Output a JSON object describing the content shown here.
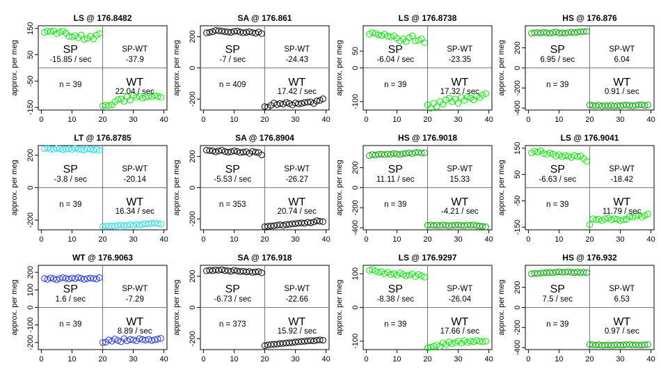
{
  "chart_data": [
    {
      "type": "scatter",
      "title": "LS @ 176.8482",
      "ylabel": "approx. per meg",
      "color": "#00ee00",
      "ylim": [
        -160,
        160
      ],
      "yticks": [
        150,
        50,
        -50,
        -150
      ],
      "xlim": [
        -1,
        41
      ],
      "xticks": [
        0,
        10,
        20,
        30,
        40
      ],
      "x": [
        1,
        2,
        3,
        4,
        5,
        6,
        7,
        8,
        9,
        10,
        11,
        12,
        13,
        14,
        15,
        16,
        17,
        18,
        19,
        20,
        21,
        22,
        23,
        24,
        25,
        26,
        27,
        28,
        29,
        30,
        31,
        32,
        33,
        34,
        35,
        36,
        37,
        38,
        39
      ],
      "y": [
        135,
        140,
        138,
        141,
        130,
        136,
        140,
        132,
        120,
        118,
        122,
        115,
        125,
        108,
        112,
        120,
        110,
        125,
        130,
        -145,
        -142,
        -143,
        -140,
        -128,
        -120,
        -118,
        -127,
        -110,
        -122,
        -105,
        -112,
        -108,
        -115,
        -112,
        -108,
        -110,
        -105,
        -108,
        -112
      ],
      "labels": {
        "sp": "SP",
        "sp_rate": "-15.85 / sec",
        "spwt": "SP-WT",
        "spwt_val": "-37.9",
        "n": "n = 39",
        "wt": "WT",
        "wt_rate": "22.04 / sec"
      }
    },
    {
      "type": "scatter",
      "title": "SA @ 176.861",
      "ylabel": "approx. per meg",
      "color": "#000000",
      "ylim": [
        -270,
        270
      ],
      "yticks": [
        200,
        0,
        -200
      ],
      "xlim": [
        -1,
        41
      ],
      "xticks": [
        0,
        10,
        20,
        30,
        40
      ],
      "x": [
        1,
        2,
        3,
        4,
        5,
        6,
        7,
        8,
        9,
        10,
        11,
        12,
        13,
        14,
        15,
        16,
        17,
        18,
        19,
        20,
        21,
        22,
        23,
        24,
        25,
        26,
        27,
        28,
        29,
        30,
        31,
        32,
        33,
        34,
        35,
        36,
        37,
        38,
        39
      ],
      "y": [
        225,
        228,
        232,
        240,
        238,
        236,
        232,
        230,
        228,
        234,
        236,
        230,
        225,
        228,
        232,
        226,
        222,
        230,
        220,
        -248,
        -252,
        -240,
        -225,
        -235,
        -228,
        -232,
        -222,
        -228,
        -238,
        -225,
        -230,
        -228,
        -222,
        -220,
        -218,
        -228,
        -212,
        -208,
        -198
      ],
      "labels": {
        "sp": "SP",
        "sp_rate": "-7 / sec",
        "spwt": "SP-WT",
        "spwt_val": "-24.43",
        "n": "n = 409",
        "wt": "WT",
        "wt_rate": "17.42 / sec"
      }
    },
    {
      "type": "scatter",
      "title": "LS @ 176.8738",
      "ylabel": "approx. per meg",
      "color": "#00ee00",
      "ylim": [
        -125,
        125
      ],
      "yticks": [
        50,
        0,
        -100
      ],
      "xlim": [
        -1,
        41
      ],
      "xticks": [
        0,
        10,
        20,
        30,
        40
      ],
      "x": [
        1,
        2,
        3,
        4,
        5,
        6,
        7,
        8,
        9,
        10,
        11,
        12,
        13,
        14,
        15,
        16,
        17,
        18,
        19,
        20,
        21,
        22,
        23,
        24,
        25,
        26,
        27,
        28,
        29,
        30,
        31,
        32,
        33,
        34,
        35,
        36,
        37,
        38,
        39
      ],
      "y": [
        100,
        105,
        102,
        98,
        96,
        100,
        94,
        92,
        95,
        88,
        80,
        86,
        78,
        90,
        95,
        80,
        82,
        86,
        75,
        -110,
        -120,
        -105,
        -115,
        -100,
        -108,
        -95,
        -90,
        -100,
        -92,
        -105,
        -88,
        -96,
        -86,
        -90,
        -95,
        -84,
        -88,
        -80,
        -76
      ],
      "labels": {
        "sp": "SP",
        "sp_rate": "-6.04 / sec",
        "spwt": "SP-WT",
        "spwt_val": "-23.35",
        "n": "n = 39",
        "wt": "WT",
        "wt_rate": "17.32 / sec"
      }
    },
    {
      "type": "scatter",
      "title": "HS @ 176.876",
      "ylabel": "approx. per meg",
      "color": "#00aa00",
      "ylim": [
        -420,
        420
      ],
      "yticks": [
        200,
        0,
        -200,
        -400
      ],
      "xlim": [
        -1,
        41
      ],
      "xticks": [
        0,
        10,
        20,
        30,
        40
      ],
      "x": [
        1,
        2,
        3,
        4,
        5,
        6,
        7,
        8,
        9,
        10,
        11,
        12,
        13,
        14,
        15,
        16,
        17,
        18,
        19,
        20,
        21,
        22,
        23,
        24,
        25,
        26,
        27,
        28,
        29,
        30,
        31,
        32,
        33,
        34,
        35,
        36,
        37,
        38,
        39
      ],
      "y": [
        345,
        350,
        352,
        348,
        355,
        350,
        345,
        352,
        358,
        348,
        350,
        346,
        352,
        355,
        350,
        356,
        360,
        362,
        364,
        -370,
        -375,
        -378,
        -372,
        -380,
        -376,
        -378,
        -374,
        -380,
        -376,
        -378,
        -372,
        -370,
        -374,
        -378,
        -372,
        -370,
        -368,
        -374,
        -370
      ],
      "labels": {
        "sp": "SP",
        "sp_rate": "6.95 / sec",
        "spwt": "SP-WT",
        "spwt_val": "6.04",
        "n": "n = 39",
        "wt": "WT",
        "wt_rate": "0.91 / sec"
      }
    },
    {
      "type": "scatter",
      "title": "LT @ 176.8785",
      "ylabel": "approx. per meg",
      "color": "#22ddee",
      "ylim": [
        -260,
        260
      ],
      "yticks": [
        200,
        0,
        -200
      ],
      "xlim": [
        -1,
        41
      ],
      "xticks": [
        0,
        10,
        20,
        30,
        40
      ],
      "x": [
        1,
        2,
        3,
        4,
        5,
        6,
        7,
        8,
        9,
        10,
        11,
        12,
        13,
        14,
        15,
        16,
        17,
        18,
        19,
        20,
        21,
        22,
        23,
        24,
        25,
        26,
        27,
        28,
        29,
        30,
        31,
        32,
        33,
        34,
        35,
        36,
        37,
        38,
        39
      ],
      "y": [
        240,
        245,
        238,
        236,
        242,
        240,
        234,
        238,
        240,
        236,
        244,
        238,
        235,
        232,
        240,
        238,
        232,
        236,
        230,
        -240,
        -235,
        -238,
        -236,
        -238,
        -232,
        -230,
        -234,
        -232,
        -228,
        -234,
        -226,
        -230,
        -226,
        -222,
        -224,
        -220,
        -218,
        -222,
        -224
      ],
      "labels": {
        "sp": "SP",
        "sp_rate": "-3.8 / sec",
        "spwt": "SP-WT",
        "spwt_val": "-20.14",
        "n": "n = 39",
        "wt": "WT",
        "wt_rate": "16.34 / sec"
      }
    },
    {
      "type": "scatter",
      "title": "SA @ 176.8904",
      "ylabel": "approx. per meg",
      "color": "#000000",
      "ylim": [
        -270,
        270
      ],
      "yticks": [
        200,
        0,
        -200
      ],
      "xlim": [
        -1,
        41
      ],
      "xticks": [
        0,
        10,
        20,
        30,
        40
      ],
      "x": [
        1,
        2,
        3,
        4,
        5,
        6,
        7,
        8,
        9,
        10,
        11,
        12,
        13,
        14,
        15,
        16,
        17,
        18,
        19,
        20,
        21,
        22,
        23,
        24,
        25,
        26,
        27,
        28,
        29,
        30,
        31,
        32,
        33,
        34,
        35,
        36,
        37,
        38,
        39
      ],
      "y": [
        240,
        238,
        236,
        230,
        235,
        240,
        232,
        228,
        230,
        236,
        232,
        225,
        228,
        230,
        220,
        232,
        228,
        225,
        210,
        -250,
        -248,
        -245,
        -244,
        -240,
        -238,
        -242,
        -236,
        -235,
        -232,
        -230,
        -228,
        -225,
        -228,
        -222,
        -225,
        -220,
        -212,
        -215,
        -218
      ],
      "labels": {
        "sp": "SP",
        "sp_rate": "-5.53 / sec",
        "spwt": "SP-WT",
        "spwt_val": "-26.27",
        "n": "n = 353",
        "wt": "WT",
        "wt_rate": "20.74 / sec"
      }
    },
    {
      "type": "scatter",
      "title": "HS @ 176.9018",
      "ylabel": "approx. per meg",
      "color": "#00aa00",
      "ylim": [
        -420,
        420
      ],
      "yticks": [
        200,
        0,
        -200,
        -400
      ],
      "xlim": [
        -1,
        41
      ],
      "xticks": [
        0,
        10,
        20,
        30,
        40
      ],
      "x": [
        1,
        2,
        3,
        4,
        5,
        6,
        7,
        8,
        9,
        10,
        11,
        12,
        13,
        14,
        15,
        16,
        17,
        18,
        19,
        20,
        21,
        22,
        23,
        24,
        25,
        26,
        27,
        28,
        29,
        30,
        31,
        32,
        33,
        34,
        35,
        36,
        37,
        38,
        39
      ],
      "y": [
        320,
        330,
        325,
        332,
        334,
        330,
        336,
        332,
        340,
        336,
        330,
        338,
        342,
        346,
        340,
        350,
        352,
        345,
        348,
        -375,
        -372,
        -376,
        -374,
        -378,
        -372,
        -375,
        -380,
        -376,
        -374,
        -372,
        -376,
        -378,
        -372,
        -375,
        -372,
        -378,
        -382,
        -386,
        -390
      ],
      "labels": {
        "sp": "SP",
        "sp_rate": "11.11 / sec",
        "spwt": "SP-WT",
        "spwt_val": "15.33",
        "n": "n = 39",
        "wt": "WT",
        "wt_rate": "-4.21 / sec"
      }
    },
    {
      "type": "scatter",
      "title": "LS @ 176.9041",
      "ylabel": "approx. per meg",
      "color": "#00ee00",
      "ylim": [
        -160,
        160
      ],
      "yticks": [
        150,
        50,
        -50,
        -150
      ],
      "xlim": [
        -1,
        41
      ],
      "xticks": [
        0,
        10,
        20,
        30,
        40
      ],
      "x": [
        1,
        2,
        3,
        4,
        5,
        6,
        7,
        8,
        9,
        10,
        11,
        12,
        13,
        14,
        15,
        16,
        17,
        18,
        19,
        20,
        21,
        22,
        23,
        24,
        25,
        26,
        27,
        28,
        29,
        30,
        31,
        32,
        33,
        34,
        35,
        36,
        37,
        38,
        39
      ],
      "y": [
        132,
        138,
        135,
        140,
        130,
        126,
        132,
        128,
        120,
        125,
        118,
        122,
        120,
        115,
        122,
        118,
        120,
        110,
        100,
        -140,
        -118,
        -122,
        -120,
        -125,
        -118,
        -115,
        -122,
        -118,
        -120,
        -125,
        -122,
        -120,
        -110,
        -112,
        -108,
        -104,
        -112,
        -106,
        -100
      ],
      "labels": {
        "sp": "SP",
        "sp_rate": "-6.63 / sec",
        "spwt": "SP-WT",
        "spwt_val": "-18.42",
        "n": "n = 39",
        "wt": "WT",
        "wt_rate": "11.79 / sec"
      }
    },
    {
      "type": "scatter",
      "title": "WT @ 176.9063",
      "ylabel": "approx. per meg",
      "color": "#2233dd",
      "ylim": [
        -240,
        240
      ],
      "yticks": [
        200,
        100,
        0,
        -100,
        -200
      ],
      "xlim": [
        -1,
        41
      ],
      "xticks": [
        0,
        10,
        20,
        30,
        40
      ],
      "x": [
        1,
        2,
        3,
        4,
        5,
        6,
        7,
        8,
        9,
        10,
        11,
        12,
        13,
        14,
        15,
        16,
        17,
        18,
        19,
        20,
        21,
        22,
        23,
        24,
        25,
        26,
        27,
        28,
        29,
        30,
        31,
        32,
        33,
        34,
        35,
        36,
        37,
        38,
        39
      ],
      "y": [
        165,
        160,
        168,
        164,
        158,
        165,
        170,
        166,
        162,
        168,
        164,
        170,
        166,
        160,
        164,
        168,
        165,
        162,
        170,
        -200,
        -198,
        -185,
        -192,
        -180,
        -188,
        -195,
        -178,
        -190,
        -182,
        -185,
        -190,
        -178,
        -183,
        -186,
        -182,
        -188,
        -184,
        -180,
        -176
      ],
      "labels": {
        "sp": "SP",
        "sp_rate": "1.6 / sec",
        "spwt": "SP-WT",
        "spwt_val": "-7.29",
        "n": "n = 39",
        "wt": "WT",
        "wt_rate": "8.89 / sec"
      }
    },
    {
      "type": "scatter",
      "title": "SA @ 176.918",
      "ylabel": "approx. per meg",
      "color": "#000000",
      "ylim": [
        -270,
        270
      ],
      "yticks": [
        200,
        0,
        -200
      ],
      "xlim": [
        -1,
        41
      ],
      "xticks": [
        0,
        10,
        20,
        30,
        40
      ],
      "x": [
        1,
        2,
        3,
        4,
        5,
        6,
        7,
        8,
        9,
        10,
        11,
        12,
        13,
        14,
        15,
        16,
        17,
        18,
        19,
        20,
        21,
        22,
        23,
        24,
        25,
        26,
        27,
        28,
        29,
        30,
        31,
        32,
        33,
        34,
        35,
        36,
        37,
        38,
        39
      ],
      "y": [
        235,
        238,
        236,
        240,
        238,
        242,
        236,
        235,
        232,
        238,
        234,
        230,
        232,
        228,
        230,
        225,
        228,
        230,
        222,
        -245,
        -240,
        -238,
        -236,
        -235,
        -232,
        -230,
        -228,
        -226,
        -225,
        -222,
        -220,
        -218,
        -216,
        -215,
        -212,
        -214,
        -210,
        -208,
        -210
      ],
      "labels": {
        "sp": "SP",
        "sp_rate": "-6.73 / sec",
        "spwt": "SP-WT",
        "spwt_val": "-22.66",
        "n": "n = 373",
        "wt": "WT",
        "wt_rate": "15.92 / sec"
      }
    },
    {
      "type": "scatter",
      "title": "LS @ 176.9297",
      "ylabel": "approx. per meg",
      "color": "#00ee00",
      "ylim": [
        -125,
        125
      ],
      "yticks": [
        100,
        0,
        -100
      ],
      "xlim": [
        -1,
        41
      ],
      "xticks": [
        0,
        10,
        20,
        30,
        40
      ],
      "x": [
        1,
        2,
        3,
        4,
        5,
        6,
        7,
        8,
        9,
        10,
        11,
        12,
        13,
        14,
        15,
        16,
        17,
        18,
        19,
        20,
        21,
        22,
        23,
        24,
        25,
        26,
        27,
        28,
        29,
        30,
        31,
        32,
        33,
        34,
        35,
        36,
        37,
        38,
        39
      ],
      "y": [
        110,
        112,
        108,
        104,
        106,
        100,
        104,
        98,
        100,
        96,
        102,
        98,
        94,
        96,
        100,
        92,
        98,
        94,
        90,
        -120,
        -118,
        -115,
        -112,
        -116,
        -105,
        -110,
        -102,
        -108,
        -104,
        -100,
        -106,
        -98,
        -104,
        -100,
        -102,
        -98,
        -100,
        -102,
        -100
      ],
      "labels": {
        "sp": "SP",
        "sp_rate": "-8.38 / sec",
        "spwt": "SP-WT",
        "spwt_val": "-26.04",
        "n": "n = 39",
        "wt": "WT",
        "wt_rate": "17.66 / sec"
      }
    },
    {
      "type": "scatter",
      "title": "HS @ 176.932",
      "ylabel": "approx. per meg",
      "color": "#00aa00",
      "ylim": [
        -420,
        420
      ],
      "yticks": [
        200,
        0,
        -200,
        -400
      ],
      "xlim": [
        -1,
        41
      ],
      "xticks": [
        0,
        10,
        20,
        30,
        40
      ],
      "x": [
        1,
        2,
        3,
        4,
        5,
        6,
        7,
        8,
        9,
        10,
        11,
        12,
        13,
        14,
        15,
        16,
        17,
        18,
        19,
        20,
        21,
        22,
        23,
        24,
        25,
        26,
        27,
        28,
        29,
        30,
        31,
        32,
        33,
        34,
        35,
        36,
        37,
        38,
        39
      ],
      "y": [
        335,
        340,
        338,
        342,
        345,
        348,
        350,
        346,
        352,
        355,
        350,
        352,
        356,
        350,
        348,
        352,
        346,
        350,
        348,
        -370,
        -372,
        -375,
        -372,
        -378,
        -376,
        -374,
        -378,
        -375,
        -372,
        -376,
        -374,
        -372,
        -370,
        -374,
        -372,
        -376,
        -374,
        -372,
        -370
      ],
      "labels": {
        "sp": "SP",
        "sp_rate": "7.5 / sec",
        "spwt": "SP-WT",
        "spwt_val": "6.53",
        "n": "n = 39",
        "wt": "WT",
        "wt_rate": "0.97 / sec"
      }
    }
  ]
}
